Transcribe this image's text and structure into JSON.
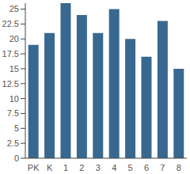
{
  "chart_data": {
    "type": "bar",
    "categories": [
      "PK",
      "K",
      "1",
      "2",
      "3",
      "4",
      "5",
      "6",
      "7",
      "8"
    ],
    "values": [
      19,
      21,
      26,
      24,
      21,
      25,
      20,
      17,
      23,
      15
    ],
    "color": "#386890",
    "ylim": [
      0,
      26
    ],
    "yticks": [
      0,
      2.5,
      5,
      7.5,
      10,
      12.5,
      15,
      17.5,
      20,
      22.5,
      25
    ],
    "grid": false
  }
}
